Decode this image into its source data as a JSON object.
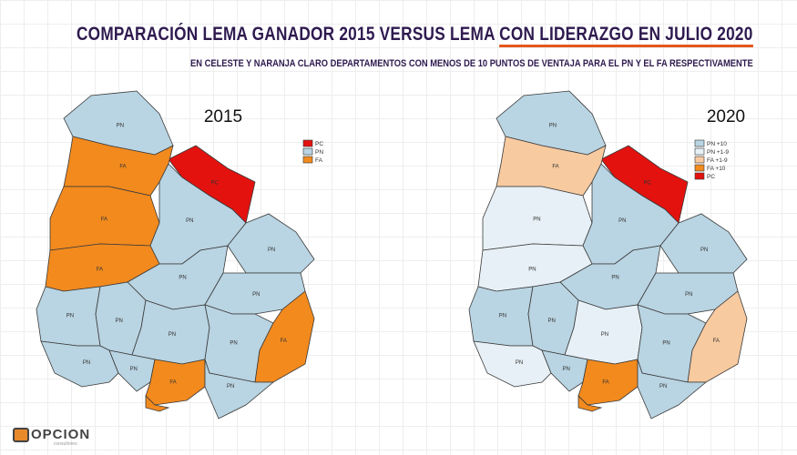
{
  "title": {
    "part1": "COMPARACIÓN LEMA GANADOR 2015 VERSUS LEMA ",
    "part2": "CON LIDERAZGO EN JULIO 2020"
  },
  "subtitle": "EN CELESTE Y NARANJA CLARO DEPARTAMENTOS CON MENOS DE 10 PUNTOS DE VENTAJA PARA EL PN Y EL FA RESPECTIVAMENTE",
  "colors": {
    "PN": "#b9d4e2",
    "PN+1-9": "#e7f0f6",
    "FA+1-9": "#f8caa0",
    "FA": "#f28a1e",
    "FA+10": "#f28a1e",
    "PC": "#e3120f",
    "border": "#3a3a3a"
  },
  "maps": [
    {
      "year": "2015",
      "legend": [
        {
          "key": "PC",
          "label": "PC"
        },
        {
          "key": "PN",
          "label": "PN"
        },
        {
          "key": "FA",
          "label": "FA"
        }
      ],
      "departments": {
        "artigas": {
          "label": "PN",
          "cat": "PN"
        },
        "rivera": {
          "label": "PC",
          "cat": "PC"
        },
        "salto": {
          "label": "FA",
          "cat": "FA"
        },
        "paysandu": {
          "label": "FA",
          "cat": "FA"
        },
        "tacuarembo": {
          "label": "PN",
          "cat": "PN"
        },
        "rionegro": {
          "label": "FA",
          "cat": "FA"
        },
        "cerrolargo": {
          "label": "PN",
          "cat": "PN"
        },
        "durazno": {
          "label": "PN",
          "cat": "PN"
        },
        "treintaytres": {
          "label": "PN",
          "cat": "PN"
        },
        "soriano": {
          "label": "PN",
          "cat": "PN"
        },
        "flores": {
          "label": "PN",
          "cat": "PN"
        },
        "florida": {
          "label": "PN",
          "cat": "PN"
        },
        "lavalleja": {
          "label": "PN",
          "cat": "PN"
        },
        "rocha": {
          "label": "FA",
          "cat": "FA"
        },
        "colonia": {
          "label": "PN",
          "cat": "PN"
        },
        "sanjose": {
          "label": "PN",
          "cat": "PN"
        },
        "canelones": {
          "label": "FA",
          "cat": "FA"
        },
        "maldonado": {
          "label": "PN",
          "cat": "PN"
        },
        "montevideo": {
          "label": "FA",
          "cat": "FA"
        }
      }
    },
    {
      "year": "2020",
      "legend": [
        {
          "key": "PN",
          "label": "PN +10"
        },
        {
          "key": "PN+1-9",
          "label": "PN +1-9"
        },
        {
          "key": "FA+1-9",
          "label": "FA +1-9"
        },
        {
          "key": "FA+10",
          "label": "FA +10"
        },
        {
          "key": "PC",
          "label": "PC"
        }
      ],
      "departments": {
        "artigas": {
          "label": "PN",
          "cat": "PN"
        },
        "rivera": {
          "label": "PC",
          "cat": "PC"
        },
        "salto": {
          "label": "FA",
          "cat": "FA+1-9"
        },
        "paysandu": {
          "label": "PN",
          "cat": "PN+1-9"
        },
        "tacuarembo": {
          "label": "PN",
          "cat": "PN"
        },
        "rionegro": {
          "label": "PN",
          "cat": "PN+1-9"
        },
        "cerrolargo": {
          "label": "PN",
          "cat": "PN"
        },
        "durazno": {
          "label": "PN",
          "cat": "PN"
        },
        "treintaytres": {
          "label": "PN",
          "cat": "PN"
        },
        "soriano": {
          "label": "PN",
          "cat": "PN"
        },
        "flores": {
          "label": "PN",
          "cat": "PN"
        },
        "florida": {
          "label": "PN",
          "cat": "PN+1-9"
        },
        "lavalleja": {
          "label": "PN",
          "cat": "PN"
        },
        "rocha": {
          "label": "FA",
          "cat": "FA+1-9"
        },
        "colonia": {
          "label": "PN",
          "cat": "PN+1-9"
        },
        "sanjose": {
          "label": "PN",
          "cat": "PN"
        },
        "canelones": {
          "label": "FA",
          "cat": "FA+10"
        },
        "maldonado": {
          "label": "PN",
          "cat": "PN"
        },
        "montevideo": {
          "label": "FA",
          "cat": "FA+10"
        }
      }
    }
  ],
  "logo": {
    "name": "OPCION",
    "tagline": "consultores"
  }
}
